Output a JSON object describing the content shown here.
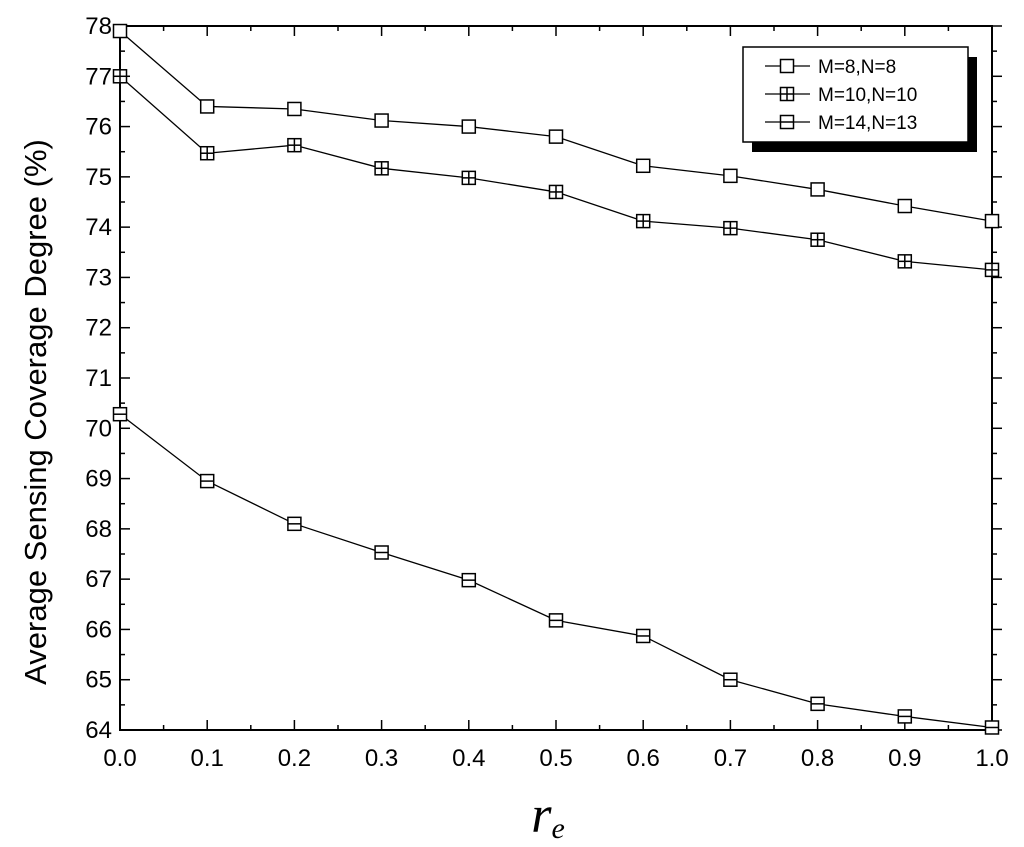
{
  "chart_data": {
    "type": "line",
    "title": "",
    "xlabel": "r",
    "xlabel_subscript": "e",
    "ylabel": "Average Sensing Coverage Degree (%)",
    "xlim": [
      0.0,
      1.0
    ],
    "ylim": [
      64,
      78
    ],
    "x": [
      0.0,
      0.1,
      0.2,
      0.3,
      0.4,
      0.5,
      0.6,
      0.7,
      0.8,
      0.9,
      1.0
    ],
    "x_tick_labels": [
      "0.0",
      "0.1",
      "0.2",
      "0.3",
      "0.4",
      "0.5",
      "0.6",
      "0.7",
      "0.8",
      "0.9",
      "1.0"
    ],
    "y_tick_labels": [
      "64",
      "65",
      "66",
      "67",
      "68",
      "69",
      "70",
      "71",
      "72",
      "73",
      "74",
      "75",
      "76",
      "77",
      "78"
    ],
    "grid": false,
    "legend_position": "top-right",
    "series": [
      {
        "name": "M=8,N=8",
        "marker": "square",
        "values": [
          77.9,
          76.4,
          76.35,
          76.12,
          76.0,
          75.8,
          75.22,
          75.02,
          74.75,
          74.42,
          74.12
        ]
      },
      {
        "name": "M=10,N=10",
        "marker": "square-cross",
        "values": [
          77.0,
          75.47,
          75.63,
          75.17,
          74.98,
          74.7,
          74.12,
          73.98,
          73.75,
          73.32,
          73.15
        ]
      },
      {
        "name": "M=14,N=13",
        "marker": "square-hline",
        "values": [
          70.28,
          68.95,
          68.1,
          67.53,
          66.98,
          66.18,
          65.87,
          65.0,
          64.52,
          64.27,
          64.05
        ]
      }
    ],
    "colors": {
      "line": "#000000",
      "marker_fill": "#ffffff",
      "legend_shadow": "#000000"
    }
  }
}
